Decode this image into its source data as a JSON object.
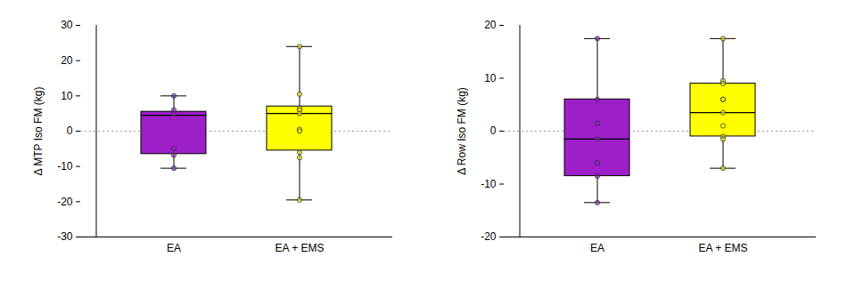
{
  "chart_data": [
    {
      "type": "box",
      "ylabel": "Δ MTP Iso FM (kg)",
      "categories": [
        "EA",
        "EA + EMS"
      ],
      "colors": [
        "#9c1fc8",
        "#ffff00"
      ],
      "min": [
        -10.5,
        -19.5
      ],
      "q1": [
        -6.5,
        -5.5
      ],
      "median": [
        4.5,
        5
      ],
      "q3": [
        5.5,
        7
      ],
      "max": [
        10,
        24
      ],
      "points": [
        [
          10,
          6,
          4.8,
          -5,
          -6.8,
          -10.5
        ],
        [
          24,
          10.5,
          6.5,
          6,
          5,
          0.5,
          0,
          -6,
          -7.5,
          -19.5
        ]
      ],
      "reference_y": 0,
      "ylim": [
        -30,
        30
      ],
      "yticks": [
        -30,
        -20,
        -10,
        0,
        10,
        20,
        30
      ]
    },
    {
      "type": "box",
      "ylabel": "Δ Row Iso FM (kg)",
      "categories": [
        "EA",
        "EA + EMS"
      ],
      "colors": [
        "#9c1fc8",
        "#ffff00"
      ],
      "min": [
        -13.5,
        -7
      ],
      "q1": [
        -8.5,
        -1
      ],
      "median": [
        -1.5,
        3.5
      ],
      "q3": [
        6,
        9
      ],
      "max": [
        17.5,
        17.5
      ],
      "points": [
        [
          17.5,
          6,
          1.5,
          -1.5,
          -6,
          -8.5,
          -13.5
        ],
        [
          17.5,
          9.5,
          9,
          6,
          6,
          3.5,
          1,
          -1,
          -1.5,
          -7
        ]
      ],
      "reference_y": 0,
      "ylim": [
        -20,
        20
      ],
      "yticks": [
        -20,
        -10,
        0,
        10,
        20
      ]
    }
  ]
}
